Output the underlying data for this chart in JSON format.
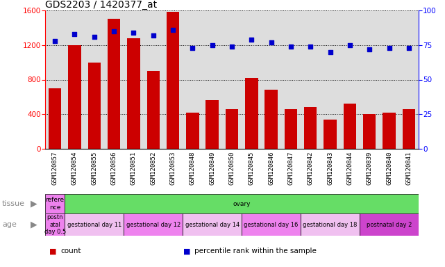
{
  "title": "GDS2203 / 1420377_at",
  "samples": [
    "GSM120857",
    "GSM120854",
    "GSM120855",
    "GSM120856",
    "GSM120851",
    "GSM120852",
    "GSM120853",
    "GSM120848",
    "GSM120849",
    "GSM120850",
    "GSM120845",
    "GSM120846",
    "GSM120847",
    "GSM120842",
    "GSM120843",
    "GSM120844",
    "GSM120839",
    "GSM120840",
    "GSM120841"
  ],
  "counts": [
    700,
    1200,
    1000,
    1500,
    1280,
    900,
    1580,
    420,
    560,
    460,
    820,
    680,
    460,
    480,
    340,
    520,
    400,
    420,
    460
  ],
  "percentiles": [
    78,
    83,
    81,
    85,
    84,
    82,
    86,
    73,
    75,
    74,
    79,
    77,
    74,
    74,
    70,
    75,
    72,
    73,
    73
  ],
  "ylim_left": [
    0,
    1600
  ],
  "ylim_right": [
    0,
    100
  ],
  "yticks_left": [
    0,
    400,
    800,
    1200,
    1600
  ],
  "yticks_right": [
    0,
    25,
    50,
    75,
    100
  ],
  "bar_color": "#cc0000",
  "dot_color": "#0000cc",
  "bg_color": "#dddddd",
  "chart_bg": "#ffffff",
  "tissue_row": {
    "label": "tissue",
    "groups": [
      {
        "label": "refere\nnce",
        "color": "#ee82ee",
        "n_samples": 1
      },
      {
        "label": "ovary",
        "color": "#66dd66",
        "n_samples": 18
      }
    ]
  },
  "age_row": {
    "label": "age",
    "groups": [
      {
        "label": "postn\natal\nday 0.5",
        "color": "#ee82ee",
        "n_samples": 1
      },
      {
        "label": "gestational day 11",
        "color": "#f0c0f0",
        "n_samples": 3
      },
      {
        "label": "gestational day 12",
        "color": "#ee82ee",
        "n_samples": 3
      },
      {
        "label": "gestational day 14",
        "color": "#f0c0f0",
        "n_samples": 3
      },
      {
        "label": "gestational day 16",
        "color": "#ee82ee",
        "n_samples": 3
      },
      {
        "label": "gestational day 18",
        "color": "#f0c0f0",
        "n_samples": 3
      },
      {
        "label": "postnatal day 2",
        "color": "#cc44cc",
        "n_samples": 3
      }
    ]
  },
  "legend_items": [
    {
      "label": "count",
      "color": "#cc0000"
    },
    {
      "label": "percentile rank within the sample",
      "color": "#0000cc"
    }
  ]
}
